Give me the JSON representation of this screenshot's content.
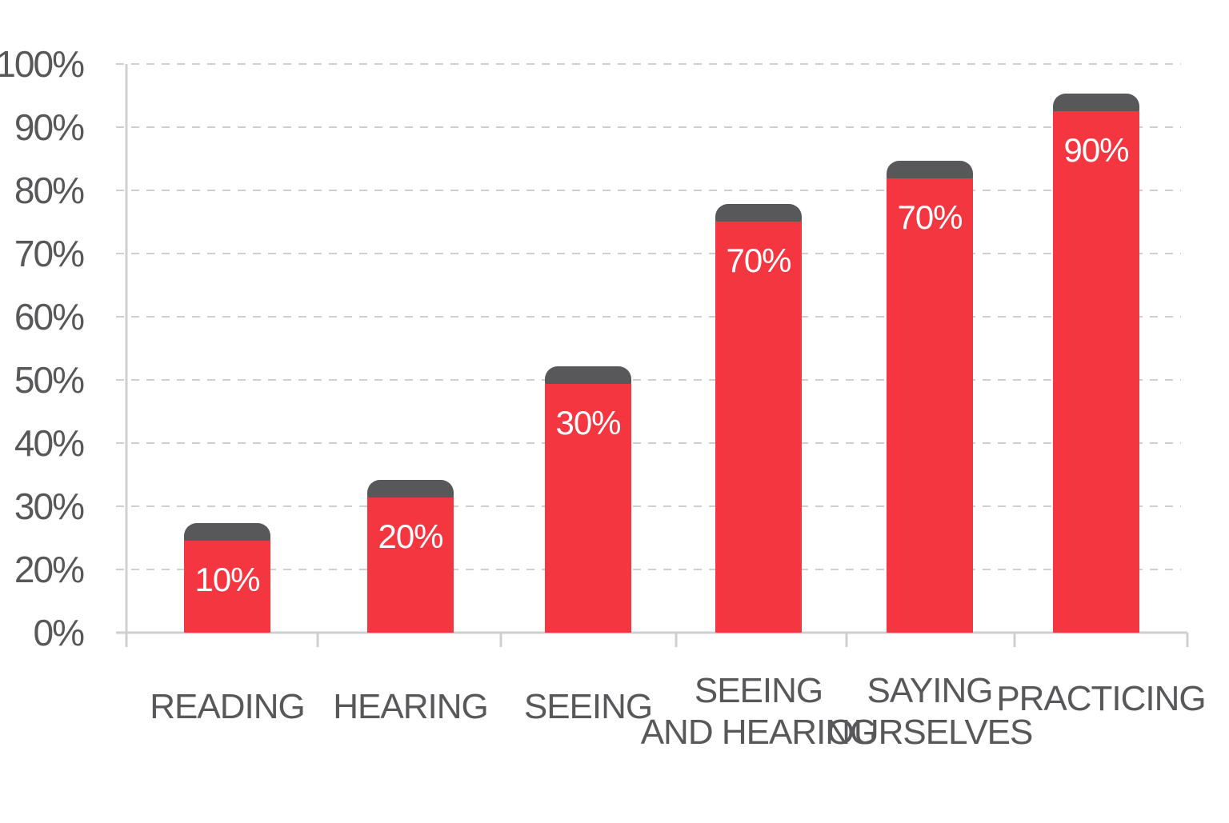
{
  "chart_data": {
    "type": "bar",
    "title": "",
    "xlabel": "",
    "ylabel": "",
    "ylim": [
      0,
      100
    ],
    "y_tick_labels": [
      "0%",
      "20%",
      "30%",
      "40%",
      "50%",
      "60%",
      "70%",
      "80%",
      "90%",
      "100%"
    ],
    "categories": [
      {
        "lines": [
          "READING"
        ]
      },
      {
        "lines": [
          "HEARING"
        ]
      },
      {
        "lines": [
          "SEEING"
        ]
      },
      {
        "lines": [
          "SEEING",
          "AND HEARING"
        ]
      },
      {
        "lines": [
          "SAYING",
          "OURSELVES"
        ]
      },
      {
        "lines": [
          "PRACTICING"
        ]
      }
    ],
    "values": [
      10,
      20,
      30,
      70,
      70,
      90
    ],
    "data_labels": [
      "10%",
      "20%",
      "30%",
      "70%",
      "70%",
      "90%"
    ],
    "grid": true,
    "legend": "none",
    "colors": {
      "bar": "#f43640",
      "bar_cap": "#58585a",
      "text": "#58585a",
      "grid": "#cfcfcf",
      "axis": "#cfcfcf"
    }
  }
}
